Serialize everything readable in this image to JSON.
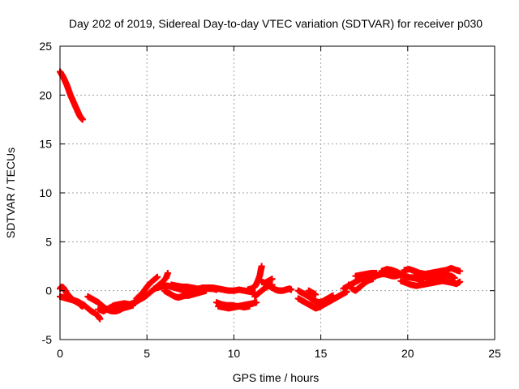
{
  "chart_data": {
    "type": "scatter",
    "title": "Day 202 of 2019, Sidereal Day-to-day VTEC variation (SDTVAR) for receiver p030",
    "xlabel": "GPS time / hours",
    "ylabel": "SDTVAR / TECUs",
    "xlim": [
      0,
      25
    ],
    "ylim": [
      -5,
      25
    ],
    "xticks": [
      0,
      5,
      10,
      15,
      20,
      25
    ],
    "yticks": [
      -5,
      0,
      5,
      10,
      15,
      20,
      25
    ],
    "grid": true,
    "series": [
      {
        "name": "SDTVAR",
        "color": "#ff0000",
        "marker": "plus",
        "segments": [
          [
            [
              0.0,
              22.4
            ],
            [
              0.1,
              22.1
            ],
            [
              0.2,
              21.8
            ],
            [
              0.3,
              21.4
            ],
            [
              0.4,
              21.0
            ],
            [
              0.5,
              20.5
            ],
            [
              0.6,
              20.0
            ],
            [
              0.7,
              19.6
            ],
            [
              0.8,
              19.2
            ],
            [
              0.9,
              18.8
            ],
            [
              1.0,
              18.4
            ],
            [
              1.1,
              18.0
            ],
            [
              1.2,
              17.7
            ],
            [
              1.3,
              17.5
            ]
          ],
          [
            [
              0.0,
              0.2
            ],
            [
              0.1,
              0.4
            ],
            [
              0.2,
              0.3
            ],
            [
              0.3,
              0.0
            ],
            [
              0.4,
              -0.3
            ],
            [
              0.5,
              -0.5
            ],
            [
              0.6,
              -0.7
            ],
            [
              0.7,
              -0.9
            ],
            [
              0.8,
              -1.0
            ],
            [
              0.9,
              -1.1
            ],
            [
              1.0,
              -1.2
            ],
            [
              1.1,
              -1.3
            ],
            [
              1.2,
              -1.5
            ],
            [
              1.3,
              -1.6
            ]
          ],
          [
            [
              0.0,
              -0.6
            ],
            [
              0.2,
              -0.7
            ],
            [
              0.4,
              -0.8
            ],
            [
              0.6,
              -0.9
            ],
            [
              0.8,
              -1.0
            ],
            [
              1.0,
              -1.1
            ],
            [
              1.2,
              -1.3
            ],
            [
              1.4,
              -1.5
            ],
            [
              1.6,
              -1.8
            ],
            [
              1.8,
              -2.1
            ],
            [
              2.0,
              -2.3
            ],
            [
              2.2,
              -2.6
            ],
            [
              2.3,
              -2.9
            ]
          ],
          [
            [
              1.6,
              -0.6
            ],
            [
              1.8,
              -0.8
            ],
            [
              2.0,
              -1.0
            ],
            [
              2.2,
              -1.2
            ],
            [
              2.4,
              -1.5
            ],
            [
              2.6,
              -1.8
            ],
            [
              2.8,
              -2.0
            ],
            [
              3.0,
              -2.1
            ],
            [
              3.2,
              -2.1
            ],
            [
              3.4,
              -2.0
            ],
            [
              3.6,
              -1.8
            ],
            [
              3.8,
              -1.7
            ],
            [
              4.0,
              -1.6
            ],
            [
              4.2,
              -1.5
            ]
          ],
          [
            [
              2.2,
              -1.9
            ],
            [
              2.5,
              -2.1
            ],
            [
              2.8,
              -1.8
            ],
            [
              3.1,
              -1.5
            ],
            [
              3.4,
              -1.4
            ],
            [
              3.7,
              -1.3
            ],
            [
              4.0,
              -1.4
            ],
            [
              4.3,
              -1.2
            ],
            [
              4.5,
              -1.0
            ],
            [
              4.7,
              -0.8
            ],
            [
              4.9,
              -0.6
            ],
            [
              5.1,
              -0.3
            ],
            [
              5.3,
              0.0
            ],
            [
              5.5,
              0.3
            ],
            [
              5.7,
              0.6
            ],
            [
              5.9,
              0.9
            ],
            [
              6.1,
              1.3
            ],
            [
              6.2,
              1.8
            ]
          ],
          [
            [
              4.4,
              -0.8
            ],
            [
              4.6,
              -0.5
            ],
            [
              4.8,
              -0.1
            ],
            [
              5.0,
              0.4
            ],
            [
              5.2,
              0.8
            ],
            [
              5.4,
              1.1
            ],
            [
              5.6,
              1.4
            ]
          ],
          [
            [
              5.4,
              0.2
            ],
            [
              5.6,
              0.3
            ],
            [
              5.8,
              0.4
            ],
            [
              6.0,
              0.5
            ],
            [
              6.2,
              0.5
            ],
            [
              6.4,
              0.4
            ],
            [
              6.6,
              0.3
            ],
            [
              6.8,
              0.2
            ],
            [
              7.0,
              0.1
            ],
            [
              7.2,
              0.1
            ],
            [
              7.4,
              0.0
            ],
            [
              7.6,
              0.0
            ],
            [
              7.8,
              0.1
            ],
            [
              8.0,
              0.2
            ],
            [
              8.2,
              0.3
            ],
            [
              8.4,
              0.3
            ],
            [
              8.6,
              0.2
            ],
            [
              8.8,
              0.2
            ],
            [
              9.0,
              0.1
            ]
          ],
          [
            [
              6.0,
              0.0
            ],
            [
              6.2,
              -0.2
            ],
            [
              6.4,
              -0.4
            ],
            [
              6.6,
              -0.6
            ],
            [
              6.8,
              -0.7
            ],
            [
              7.0,
              -0.6
            ],
            [
              7.2,
              -0.5
            ],
            [
              7.4,
              -0.5
            ],
            [
              7.6,
              -0.4
            ],
            [
              7.8,
              -0.3
            ],
            [
              8.0,
              -0.2
            ],
            [
              8.2,
              -0.1
            ],
            [
              8.4,
              0.0
            ]
          ],
          [
            [
              6.4,
              0.6
            ],
            [
              6.7,
              0.5
            ],
            [
              7.0,
              0.4
            ],
            [
              7.3,
              0.4
            ],
            [
              7.6,
              0.3
            ],
            [
              7.9,
              0.2
            ],
            [
              8.2,
              0.2
            ],
            [
              8.5,
              0.3
            ],
            [
              8.8,
              0.3
            ],
            [
              9.1,
              0.2
            ],
            [
              9.4,
              0.1
            ],
            [
              9.7,
              0.0
            ],
            [
              10.0,
              0.0
            ],
            [
              10.3,
              0.1
            ],
            [
              10.6,
              0.0
            ],
            [
              10.9,
              -0.1
            ],
            [
              11.2,
              -0.2
            ]
          ],
          [
            [
              9.0,
              -1.2
            ],
            [
              9.3,
              -1.4
            ],
            [
              9.6,
              -1.5
            ],
            [
              9.9,
              -1.5
            ],
            [
              10.2,
              -1.6
            ],
            [
              10.5,
              -1.5
            ],
            [
              10.8,
              -1.4
            ],
            [
              11.1,
              -1.3
            ],
            [
              11.3,
              -1.2
            ]
          ],
          [
            [
              9.1,
              -1.6
            ],
            [
              9.4,
              -1.7
            ],
            [
              9.7,
              -1.8
            ],
            [
              10.0,
              -1.7
            ],
            [
              10.3,
              -1.6
            ],
            [
              10.6,
              -1.7
            ],
            [
              10.9,
              -1.6
            ]
          ],
          [
            [
              10.8,
              0.1
            ],
            [
              11.0,
              0.2
            ],
            [
              11.2,
              0.4
            ],
            [
              11.3,
              0.7
            ],
            [
              11.4,
              1.1
            ],
            [
              11.5,
              1.6
            ],
            [
              11.55,
              2.1
            ],
            [
              11.6,
              2.5
            ]
          ],
          [
            [
              11.2,
              -0.6
            ],
            [
              11.4,
              -0.3
            ],
            [
              11.6,
              0.0
            ],
            [
              11.8,
              0.3
            ],
            [
              12.0,
              0.5
            ],
            [
              12.2,
              0.6
            ]
          ],
          [
            [
              11.8,
              0.7
            ],
            [
              12.0,
              0.5
            ],
            [
              12.2,
              0.3
            ],
            [
              12.4,
              0.1
            ],
            [
              12.6,
              0.0
            ],
            [
              12.8,
              0.0
            ],
            [
              13.0,
              0.1
            ],
            [
              13.2,
              0.2
            ],
            [
              13.3,
              0.1
            ]
          ],
          [
            [
              11.6,
              0.9
            ],
            [
              11.8,
              0.8
            ],
            [
              12.0,
              1.0
            ],
            [
              12.2,
              1.2
            ]
          ],
          [
            [
              13.7,
              0.0
            ],
            [
              13.9,
              -0.2
            ],
            [
              14.1,
              -0.4
            ],
            [
              14.3,
              -0.6
            ],
            [
              14.5,
              -0.9
            ],
            [
              14.7,
              -1.1
            ],
            [
              14.9,
              -1.2
            ],
            [
              15.1,
              -1.1
            ],
            [
              15.3,
              -0.9
            ],
            [
              15.5,
              -0.7
            ],
            [
              15.7,
              -0.5
            ]
          ],
          [
            [
              13.7,
              -0.8
            ],
            [
              13.9,
              -1.0
            ],
            [
              14.1,
              -1.2
            ],
            [
              14.3,
              -1.4
            ],
            [
              14.5,
              -1.6
            ],
            [
              14.7,
              -1.8
            ],
            [
              14.9,
              -1.7
            ],
            [
              15.1,
              -1.5
            ],
            [
              15.3,
              -1.3
            ],
            [
              15.5,
              -1.1
            ],
            [
              15.7,
              -0.9
            ],
            [
              15.9,
              -0.7
            ],
            [
              16.1,
              -0.5
            ],
            [
              16.3,
              -0.3
            ],
            [
              16.5,
              -0.1
            ]
          ],
          [
            [
              14.3,
              0.0
            ],
            [
              14.5,
              -0.2
            ],
            [
              14.7,
              -0.4
            ]
          ],
          [
            [
              16.3,
              0.2
            ],
            [
              16.5,
              0.4
            ],
            [
              16.7,
              0.6
            ],
            [
              16.9,
              0.8
            ],
            [
              17.1,
              1.0
            ],
            [
              17.3,
              1.2
            ],
            [
              17.5,
              1.3
            ],
            [
              17.7,
              1.4
            ],
            [
              17.9,
              1.4
            ],
            [
              18.1,
              1.5
            ],
            [
              18.3,
              1.6
            ],
            [
              18.5,
              1.7
            ],
            [
              18.7,
              1.7
            ],
            [
              18.9,
              1.6
            ],
            [
              19.1,
              1.5
            ],
            [
              19.3,
              1.5
            ],
            [
              19.5,
              1.6
            ],
            [
              19.7,
              1.7
            ]
          ],
          [
            [
              16.6,
              0.6
            ],
            [
              16.8,
              0.2
            ],
            [
              17.0,
              0.0
            ],
            [
              17.2,
              0.3
            ],
            [
              17.4,
              0.6
            ],
            [
              17.6,
              0.9
            ],
            [
              17.8,
              1.1
            ],
            [
              18.0,
              1.2
            ]
          ],
          [
            [
              17.0,
              1.5
            ],
            [
              17.3,
              1.6
            ],
            [
              17.6,
              1.7
            ],
            [
              17.9,
              1.8
            ],
            [
              18.2,
              1.8
            ]
          ],
          [
            [
              18.5,
              2.0
            ],
            [
              18.8,
              2.2
            ],
            [
              19.1,
              2.1
            ],
            [
              19.4,
              1.9
            ],
            [
              19.7,
              1.6
            ],
            [
              20.0,
              1.4
            ],
            [
              20.3,
              1.3
            ],
            [
              20.6,
              1.2
            ],
            [
              20.9,
              1.1
            ]
          ],
          [
            [
              19.6,
              1.0
            ],
            [
              19.9,
              0.8
            ],
            [
              20.2,
              0.6
            ],
            [
              20.5,
              0.5
            ],
            [
              20.8,
              0.6
            ],
            [
              21.1,
              0.7
            ],
            [
              21.4,
              0.8
            ],
            [
              21.7,
              0.9
            ],
            [
              22.0,
              1.0
            ],
            [
              22.3,
              0.9
            ],
            [
              22.6,
              0.8
            ],
            [
              22.8,
              0.7
            ],
            [
              23.0,
              0.9
            ]
          ],
          [
            [
              19.8,
              2.1
            ],
            [
              20.1,
              2.2
            ],
            [
              20.4,
              2.0
            ],
            [
              20.7,
              1.8
            ],
            [
              21.0,
              1.7
            ],
            [
              21.3,
              1.8
            ],
            [
              21.6,
              1.9
            ],
            [
              21.9,
              2.0
            ],
            [
              22.2,
              2.1
            ],
            [
              22.5,
              2.3
            ],
            [
              22.8,
              2.1
            ],
            [
              23.0,
              2.0
            ]
          ],
          [
            [
              20.4,
              1.6
            ],
            [
              20.7,
              1.5
            ],
            [
              21.0,
              1.4
            ],
            [
              21.3,
              1.3
            ],
            [
              21.6,
              1.4
            ],
            [
              21.9,
              1.5
            ],
            [
              22.2,
              1.6
            ],
            [
              22.5,
              1.5
            ],
            [
              22.7,
              1.3
            ]
          ]
        ]
      }
    ]
  }
}
